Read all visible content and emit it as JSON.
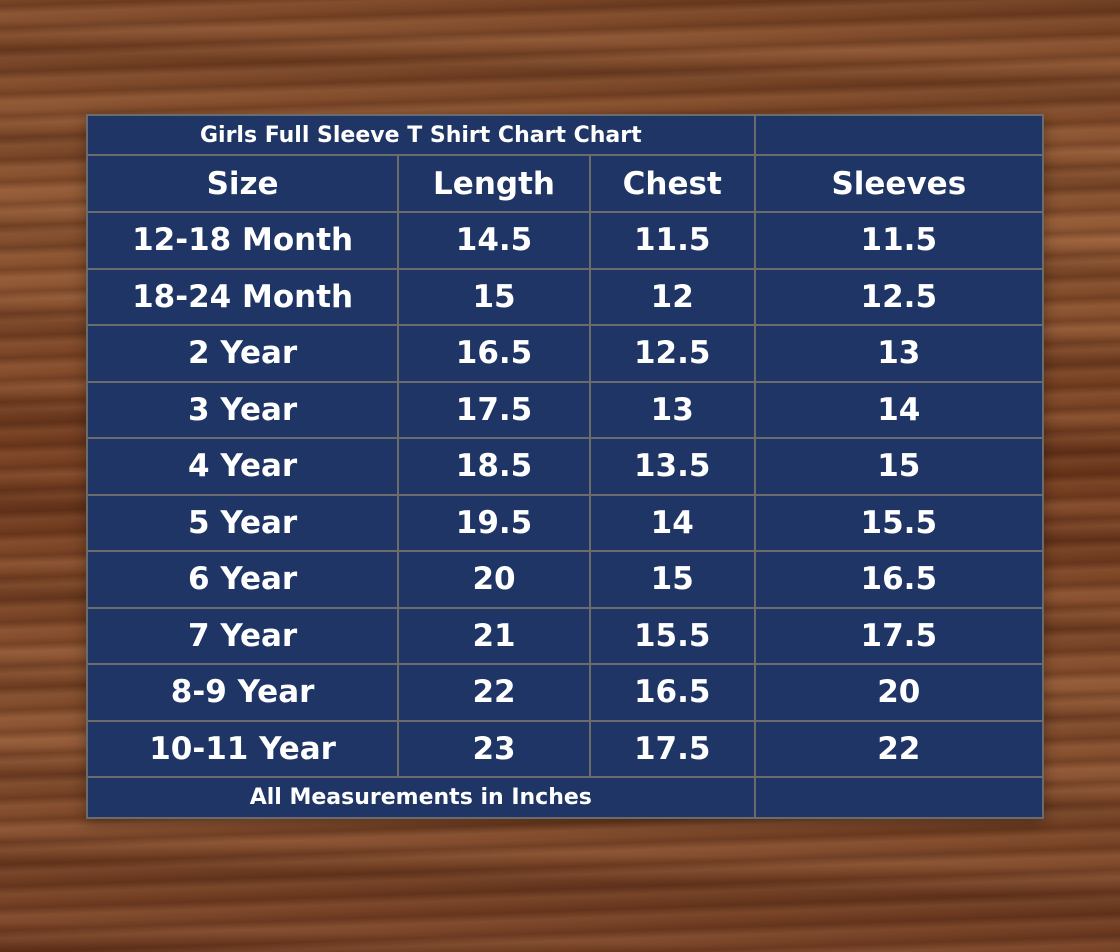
{
  "title": "Girls Full Sleeve T Shirt  Chart Chart",
  "columns": [
    "Size",
    "Length",
    "Chest",
    "Sleeves"
  ],
  "rows": [
    [
      "12-18 Month",
      "14.5",
      "11.5",
      "11.5"
    ],
    [
      "18-24 Month",
      "15",
      "12",
      "12.5"
    ],
    [
      "2 Year",
      "16.5",
      "12.5",
      "13"
    ],
    [
      "3 Year",
      "17.5",
      "13",
      "14"
    ],
    [
      "4 Year",
      "18.5",
      "13.5",
      "15"
    ],
    [
      "5 Year",
      "19.5",
      "14",
      "15.5"
    ],
    [
      "6 Year",
      "20",
      "15",
      "16.5"
    ],
    [
      "7 Year",
      "21",
      "15.5",
      "17.5"
    ],
    [
      "8-9 Year",
      "22",
      "16.5",
      "20"
    ],
    [
      "10-11 Year",
      "23",
      "17.5",
      "22"
    ]
  ],
  "footer": "All  Measurements in Inches",
  "colors": {
    "table_bg": "#1f3566",
    "border": "#6b6b6b",
    "text": "#ffffff"
  }
}
